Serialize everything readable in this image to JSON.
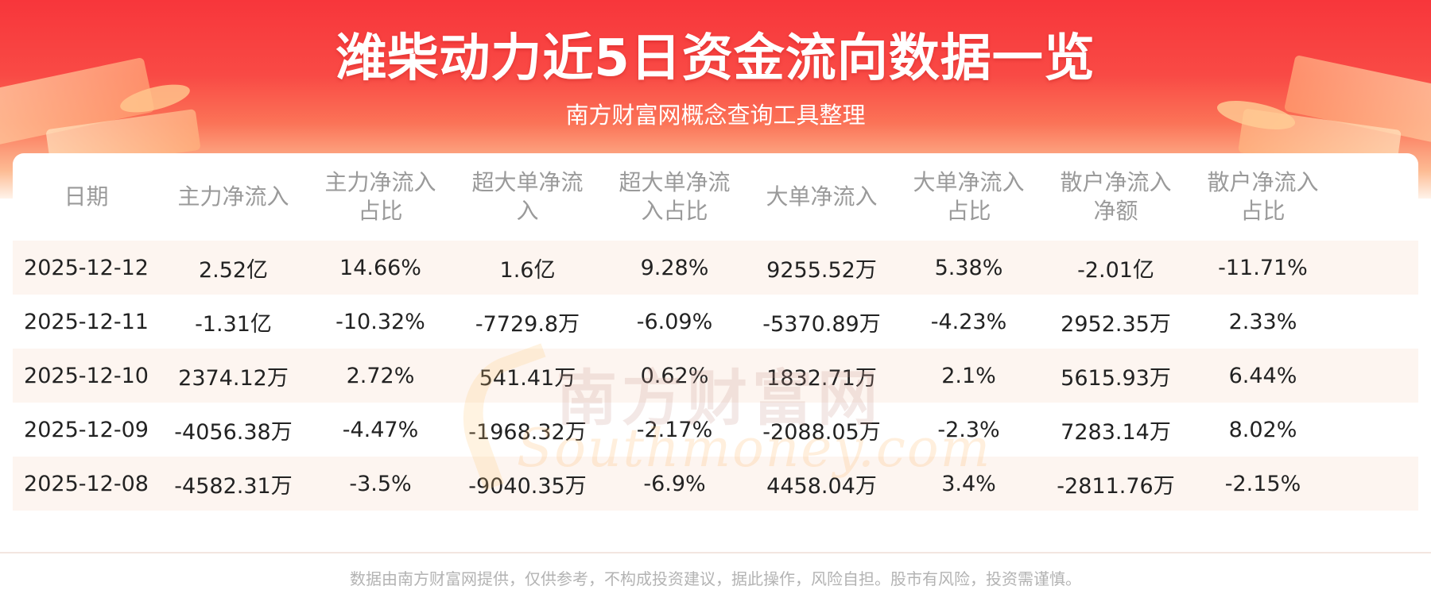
{
  "header": {
    "title": "潍柴动力近5日资金流向数据一览",
    "subtitle": "南方财富网概念查询工具整理"
  },
  "table": {
    "columns": [
      [
        "日期"
      ],
      [
        "主力净流入"
      ],
      [
        "主力净流入",
        "占比"
      ],
      [
        "超大单净流",
        "入"
      ],
      [
        "超大单净流",
        "入占比"
      ],
      [
        "大单净流入"
      ],
      [
        "大单净流入",
        "占比"
      ],
      [
        "散户净流入",
        "净额"
      ],
      [
        "散户净流入",
        "占比"
      ]
    ],
    "rows": [
      [
        "2025-12-12",
        "2.52亿",
        "14.66%",
        "1.6亿",
        "9.28%",
        "9255.52万",
        "5.38%",
        "-2.01亿",
        "-11.71%"
      ],
      [
        "2025-12-11",
        "-1.31亿",
        "-10.32%",
        "-7729.8万",
        "-6.09%",
        "-5370.89万",
        "-4.23%",
        "2952.35万",
        "2.33%"
      ],
      [
        "2025-12-10",
        "2374.12万",
        "2.72%",
        "541.41万",
        "0.62%",
        "1832.71万",
        "2.1%",
        "5615.93万",
        "6.44%"
      ],
      [
        "2025-12-09",
        "-4056.38万",
        "-4.47%",
        "-1968.32万",
        "-2.17%",
        "-2088.05万",
        "-2.3%",
        "7283.14万",
        "8.02%"
      ],
      [
        "2025-12-08",
        "-4582.31万",
        "-3.5%",
        "-9040.35万",
        "-6.9%",
        "4458.04万",
        "3.4%",
        "-2811.76万",
        "-2.15%"
      ]
    ]
  },
  "watermark": {
    "cn": "南方财富网",
    "en": "Southmoney.com"
  },
  "footer": {
    "disclaimer": "数据由南方财富网提供，仅供参考，不构成投资建议，据此操作，风险自担。股市有风险，投资需谨慎。"
  },
  "colors": {
    "banner_red": "#f7363b",
    "stripe": "#fdf5f0",
    "header_text": "#9a9a9a",
    "cell_text": "#222222"
  }
}
